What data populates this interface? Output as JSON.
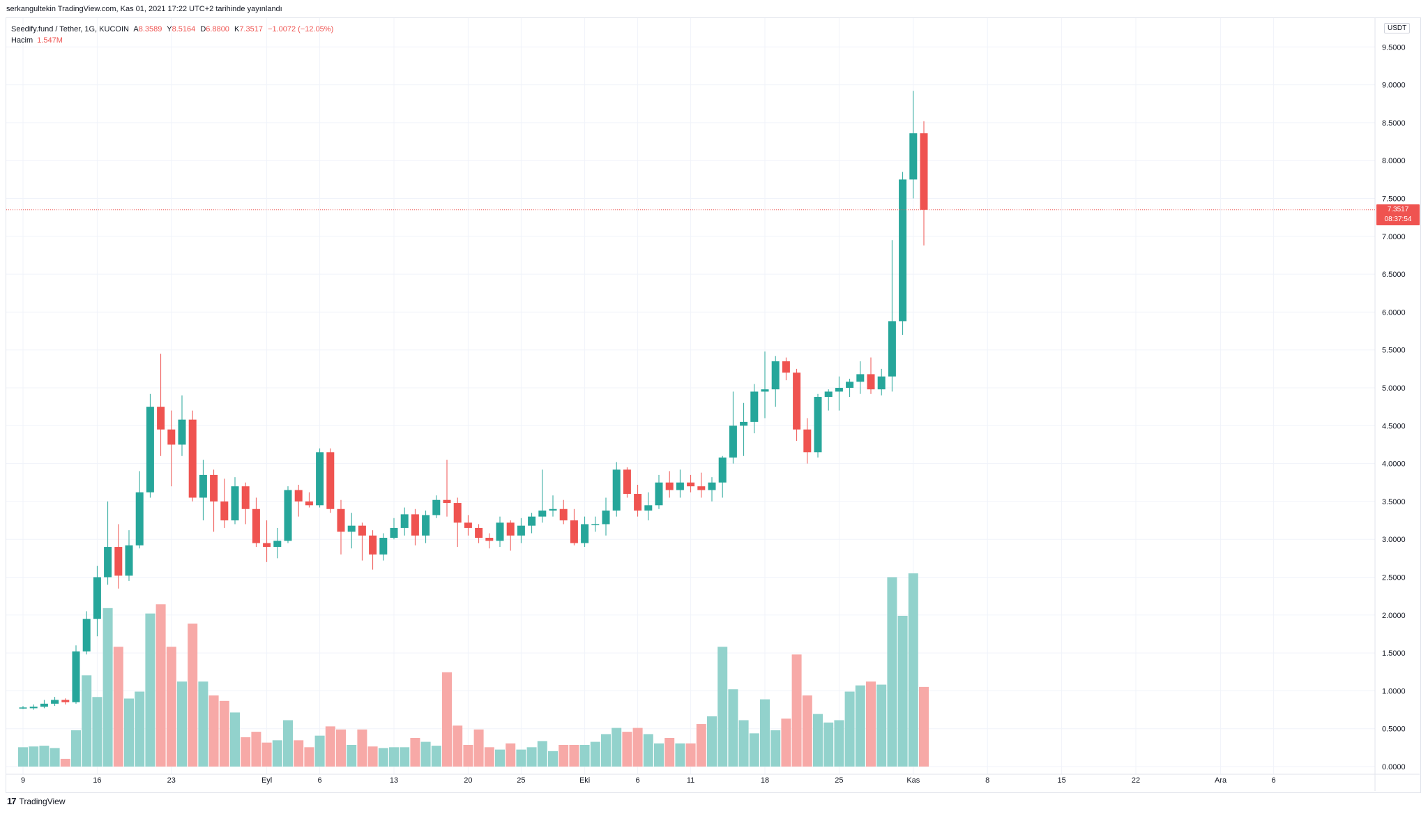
{
  "caption": "serkangultekin TradingView.com, Kas 01, 2021 17:22 UTC+2 tarihinde yayınlandı",
  "legend": {
    "symbol": "Seedify.fund / Tether, 1G, KUCOIN",
    "open_label": "A",
    "open": "8.3589",
    "high_label": "Y",
    "high": "8.5164",
    "low_label": "D",
    "low": "6.8800",
    "close_label": "K",
    "close": "7.3517",
    "change": "−1.0072 (−12.05%)",
    "volume_label": "Hacim",
    "volume_value": "1.547M"
  },
  "currency_badge": "USDT",
  "last_price_tag": {
    "price": "7.3517",
    "countdown": "08:37:54"
  },
  "brand": {
    "logo": "17",
    "name": "TradingView"
  },
  "colors": {
    "up": "#26a69a",
    "down": "#ef5350",
    "up_volume": "#92d2cc",
    "down_volume": "#f7a9a7",
    "grid": "#f0f3fa"
  },
  "chart_data": {
    "type": "candlestick",
    "price_axis": {
      "ylim": [
        -0.02,
        9.8
      ],
      "ticks": [
        0,
        0.5,
        1.0,
        1.5,
        2.0,
        2.5,
        3.0,
        3.5,
        4.0,
        4.5,
        5.0,
        5.5,
        6.0,
        6.5,
        7.0,
        7.5,
        8.0,
        8.5,
        9.0,
        9.5
      ],
      "tick_labels": [
        "0.0000",
        "0.5000",
        "1.0000",
        "1.5000",
        "2.0000",
        "2.5000",
        "3.0000",
        "3.5000",
        "4.0000",
        "4.5000",
        "5.0000",
        "5.5000",
        "6.0000",
        "6.5000",
        "7.0000",
        "7.5000",
        "8.0000",
        "8.5000",
        "9.0000",
        "9.5000"
      ]
    },
    "volume_max_on_price_scale": 2.45,
    "time_axis": {
      "labels": [
        {
          "text": "9",
          "day": 0
        },
        {
          "text": "16",
          "day": 7
        },
        {
          "text": "23",
          "day": 14
        },
        {
          "text": "Eyl",
          "day": 23
        },
        {
          "text": "6",
          "day": 28
        },
        {
          "text": "13",
          "day": 35
        },
        {
          "text": "20",
          "day": 42
        },
        {
          "text": "25",
          "day": 47
        },
        {
          "text": "Eki",
          "day": 53
        },
        {
          "text": "6",
          "day": 58
        },
        {
          "text": "11",
          "day": 63
        },
        {
          "text": "18",
          "day": 70
        },
        {
          "text": "25",
          "day": 77
        },
        {
          "text": "Kas",
          "day": 84
        },
        {
          "text": "8",
          "day": 91
        },
        {
          "text": "15",
          "day": 98
        },
        {
          "text": "22",
          "day": 105
        },
        {
          "text": "Ara",
          "day": 113
        },
        {
          "text": "6",
          "day": 118
        }
      ],
      "total_days": 126
    },
    "candles": [
      {
        "o": 0.78,
        "h": 0.8,
        "l": 0.76,
        "c": 0.78,
        "v": 0.25
      },
      {
        "o": 0.77,
        "h": 0.82,
        "l": 0.75,
        "c": 0.79,
        "v": 0.26
      },
      {
        "o": 0.79,
        "h": 0.88,
        "l": 0.77,
        "c": 0.83,
        "v": 0.27
      },
      {
        "o": 0.83,
        "h": 0.92,
        "l": 0.8,
        "c": 0.88,
        "v": 0.24
      },
      {
        "o": 0.88,
        "h": 0.9,
        "l": 0.82,
        "c": 0.85,
        "v": 0.1
      },
      {
        "o": 0.85,
        "h": 1.6,
        "l": 0.83,
        "c": 1.52,
        "v": 0.47
      },
      {
        "o": 1.52,
        "h": 2.05,
        "l": 1.48,
        "c": 1.95,
        "v": 1.18
      },
      {
        "o": 1.95,
        "h": 2.65,
        "l": 1.72,
        "c": 2.5,
        "v": 0.9
      },
      {
        "o": 2.5,
        "h": 3.5,
        "l": 2.4,
        "c": 2.9,
        "v": 2.05
      },
      {
        "o": 2.9,
        "h": 3.2,
        "l": 2.35,
        "c": 2.52,
        "v": 1.55
      },
      {
        "o": 2.52,
        "h": 3.12,
        "l": 2.45,
        "c": 2.92,
        "v": 0.88
      },
      {
        "o": 2.92,
        "h": 3.9,
        "l": 2.88,
        "c": 3.62,
        "v": 0.97
      },
      {
        "o": 3.62,
        "h": 4.92,
        "l": 3.55,
        "c": 4.75,
        "v": 1.98
      },
      {
        "o": 4.75,
        "h": 5.45,
        "l": 4.1,
        "c": 4.45,
        "v": 2.1
      },
      {
        "o": 4.45,
        "h": 4.7,
        "l": 3.7,
        "c": 4.25,
        "v": 1.55
      },
      {
        "o": 4.25,
        "h": 4.9,
        "l": 4.1,
        "c": 4.58,
        "v": 1.1
      },
      {
        "o": 4.58,
        "h": 4.7,
        "l": 3.5,
        "c": 3.55,
        "v": 1.85
      },
      {
        "o": 3.55,
        "h": 4.05,
        "l": 3.25,
        "c": 3.85,
        "v": 1.1
      },
      {
        "o": 3.85,
        "h": 3.92,
        "l": 3.1,
        "c": 3.5,
        "v": 0.92
      },
      {
        "o": 3.5,
        "h": 3.8,
        "l": 3.15,
        "c": 3.25,
        "v": 0.85
      },
      {
        "o": 3.25,
        "h": 3.82,
        "l": 3.2,
        "c": 3.7,
        "v": 0.7
      },
      {
        "o": 3.7,
        "h": 3.75,
        "l": 3.2,
        "c": 3.4,
        "v": 0.38
      },
      {
        "o": 3.4,
        "h": 3.55,
        "l": 2.9,
        "c": 2.95,
        "v": 0.45
      },
      {
        "o": 2.95,
        "h": 3.25,
        "l": 2.7,
        "c": 2.9,
        "v": 0.31
      },
      {
        "o": 2.9,
        "h": 3.15,
        "l": 2.75,
        "c": 2.98,
        "v": 0.34
      },
      {
        "o": 2.98,
        "h": 3.7,
        "l": 2.95,
        "c": 3.65,
        "v": 0.6
      },
      {
        "o": 3.65,
        "h": 3.72,
        "l": 3.3,
        "c": 3.5,
        "v": 0.34
      },
      {
        "o": 3.5,
        "h": 3.62,
        "l": 3.42,
        "c": 3.45,
        "v": 0.25
      },
      {
        "o": 3.45,
        "h": 4.2,
        "l": 3.42,
        "c": 4.15,
        "v": 0.4
      },
      {
        "o": 4.15,
        "h": 4.2,
        "l": 3.35,
        "c": 3.4,
        "v": 0.52
      },
      {
        "o": 3.4,
        "h": 3.52,
        "l": 2.8,
        "c": 3.1,
        "v": 0.48
      },
      {
        "o": 3.1,
        "h": 3.35,
        "l": 2.88,
        "c": 3.18,
        "v": 0.28
      },
      {
        "o": 3.18,
        "h": 3.22,
        "l": 2.72,
        "c": 3.05,
        "v": 0.48
      },
      {
        "o": 3.05,
        "h": 3.12,
        "l": 2.6,
        "c": 2.8,
        "v": 0.26
      },
      {
        "o": 2.8,
        "h": 3.08,
        "l": 2.72,
        "c": 3.02,
        "v": 0.24
      },
      {
        "o": 3.02,
        "h": 3.28,
        "l": 3.0,
        "c": 3.15,
        "v": 0.25
      },
      {
        "o": 3.15,
        "h": 3.42,
        "l": 3.05,
        "c": 3.33,
        "v": 0.25
      },
      {
        "o": 3.33,
        "h": 3.4,
        "l": 2.92,
        "c": 3.05,
        "v": 0.37
      },
      {
        "o": 3.05,
        "h": 3.38,
        "l": 2.95,
        "c": 3.32,
        "v": 0.32
      },
      {
        "o": 3.32,
        "h": 3.58,
        "l": 3.28,
        "c": 3.52,
        "v": 0.27
      },
      {
        "o": 3.52,
        "h": 4.05,
        "l": 3.3,
        "c": 3.48,
        "v": 1.22
      },
      {
        "o": 3.48,
        "h": 3.55,
        "l": 2.9,
        "c": 3.22,
        "v": 0.53
      },
      {
        "o": 3.22,
        "h": 3.32,
        "l": 3.05,
        "c": 3.15,
        "v": 0.28
      },
      {
        "o": 3.15,
        "h": 3.2,
        "l": 2.95,
        "c": 3.02,
        "v": 0.48
      },
      {
        "o": 3.02,
        "h": 3.08,
        "l": 2.88,
        "c": 2.98,
        "v": 0.25
      },
      {
        "o": 2.98,
        "h": 3.3,
        "l": 2.9,
        "c": 3.22,
        "v": 0.22
      },
      {
        "o": 3.22,
        "h": 3.25,
        "l": 2.85,
        "c": 3.05,
        "v": 0.3
      },
      {
        "o": 3.05,
        "h": 3.28,
        "l": 2.95,
        "c": 3.18,
        "v": 0.22
      },
      {
        "o": 3.18,
        "h": 3.35,
        "l": 3.08,
        "c": 3.3,
        "v": 0.25
      },
      {
        "o": 3.3,
        "h": 3.92,
        "l": 3.22,
        "c": 3.38,
        "v": 0.33
      },
      {
        "o": 3.38,
        "h": 3.58,
        "l": 3.3,
        "c": 3.4,
        "v": 0.2
      },
      {
        "o": 3.4,
        "h": 3.52,
        "l": 3.2,
        "c": 3.25,
        "v": 0.28
      },
      {
        "o": 3.25,
        "h": 3.4,
        "l": 2.92,
        "c": 2.95,
        "v": 0.28
      },
      {
        "o": 2.95,
        "h": 3.3,
        "l": 2.9,
        "c": 3.2,
        "v": 0.28
      },
      {
        "o": 3.2,
        "h": 3.3,
        "l": 3.1,
        "c": 3.2,
        "v": 0.32
      },
      {
        "o": 3.2,
        "h": 3.55,
        "l": 3.05,
        "c": 3.38,
        "v": 0.42
      },
      {
        "o": 3.38,
        "h": 4.02,
        "l": 3.3,
        "c": 3.92,
        "v": 0.5
      },
      {
        "o": 3.92,
        "h": 3.95,
        "l": 3.55,
        "c": 3.6,
        "v": 0.45
      },
      {
        "o": 3.6,
        "h": 3.72,
        "l": 3.3,
        "c": 3.38,
        "v": 0.5
      },
      {
        "o": 3.38,
        "h": 3.62,
        "l": 3.25,
        "c": 3.45,
        "v": 0.42
      },
      {
        "o": 3.45,
        "h": 3.85,
        "l": 3.4,
        "c": 3.75,
        "v": 0.3
      },
      {
        "o": 3.75,
        "h": 3.9,
        "l": 3.55,
        "c": 3.65,
        "v": 0.37
      },
      {
        "o": 3.65,
        "h": 3.92,
        "l": 3.55,
        "c": 3.75,
        "v": 0.3
      },
      {
        "o": 3.75,
        "h": 3.85,
        "l": 3.62,
        "c": 3.7,
        "v": 0.3
      },
      {
        "o": 3.7,
        "h": 3.88,
        "l": 3.55,
        "c": 3.65,
        "v": 0.55
      },
      {
        "o": 3.65,
        "h": 3.82,
        "l": 3.5,
        "c": 3.75,
        "v": 0.65
      },
      {
        "o": 3.75,
        "h": 4.1,
        "l": 3.55,
        "c": 4.08,
        "v": 1.55
      },
      {
        "o": 4.08,
        "h": 4.95,
        "l": 4.0,
        "c": 4.5,
        "v": 1.0
      },
      {
        "o": 4.5,
        "h": 4.8,
        "l": 4.1,
        "c": 4.55,
        "v": 0.6
      },
      {
        "o": 4.55,
        "h": 5.05,
        "l": 4.4,
        "c": 4.95,
        "v": 0.43
      },
      {
        "o": 4.95,
        "h": 5.48,
        "l": 4.6,
        "c": 4.98,
        "v": 0.87
      },
      {
        "o": 4.98,
        "h": 5.42,
        "l": 4.75,
        "c": 5.35,
        "v": 0.47
      },
      {
        "o": 5.35,
        "h": 5.4,
        "l": 5.1,
        "c": 5.2,
        "v": 0.62
      },
      {
        "o": 5.2,
        "h": 5.25,
        "l": 4.3,
        "c": 4.45,
        "v": 1.45
      },
      {
        "o": 4.45,
        "h": 4.6,
        "l": 4.0,
        "c": 4.15,
        "v": 0.92
      },
      {
        "o": 4.15,
        "h": 4.92,
        "l": 4.08,
        "c": 4.88,
        "v": 0.68
      },
      {
        "o": 4.88,
        "h": 4.98,
        "l": 4.7,
        "c": 4.95,
        "v": 0.57
      },
      {
        "o": 4.95,
        "h": 5.15,
        "l": 4.7,
        "c": 5.0,
        "v": 0.6
      },
      {
        "o": 5.0,
        "h": 5.12,
        "l": 4.88,
        "c": 5.08,
        "v": 0.97
      },
      {
        "o": 5.08,
        "h": 5.35,
        "l": 4.92,
        "c": 5.18,
        "v": 1.05
      },
      {
        "o": 5.18,
        "h": 5.4,
        "l": 4.92,
        "c": 4.98,
        "v": 1.1
      },
      {
        "o": 4.98,
        "h": 5.25,
        "l": 4.9,
        "c": 5.15,
        "v": 1.06
      },
      {
        "o": 5.15,
        "h": 6.95,
        "l": 4.95,
        "c": 5.88,
        "v": 2.45
      },
      {
        "o": 5.88,
        "h": 7.85,
        "l": 5.7,
        "c": 7.75,
        "v": 1.95
      },
      {
        "o": 7.75,
        "h": 8.92,
        "l": 7.5,
        "c": 8.36,
        "v": 2.5
      },
      {
        "o": 8.36,
        "h": 8.52,
        "l": 6.88,
        "c": 7.35,
        "v": 1.03
      }
    ]
  }
}
